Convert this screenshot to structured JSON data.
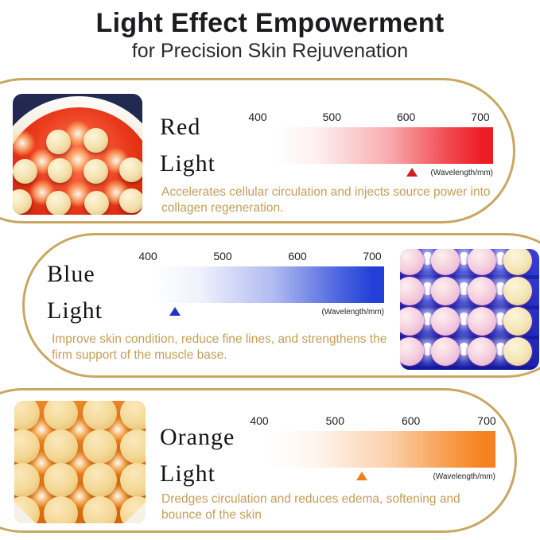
{
  "header": {
    "title": "Light Effect Empowerment",
    "subtitle": "for Precision Skin Rejuvenation"
  },
  "wavelength_unit": "(Wavelength/mm)",
  "colors": {
    "gold_border": "#C9A761",
    "gold_text": "#C59D58",
    "tick_text": "#222222"
  },
  "sections": [
    {
      "id": "red",
      "name": "Red Light",
      "name_line1": "Red",
      "name_line2": "Light",
      "ticks": [
        "400",
        "500",
        "600",
        "700"
      ],
      "bar_color": "#EC1C24",
      "marker_color": "#D61A21",
      "marker_pct": 63,
      "marker_wavelength_nm": 600,
      "description": "Accelerates cellular circulation and injects source power into collagen regeneration.",
      "photo": "red-led-therapy-device"
    },
    {
      "id": "blue",
      "name": "Blue Light",
      "name_line1": "Blue",
      "name_line2": "Light",
      "ticks": [
        "400",
        "500",
        "600",
        "700"
      ],
      "bar_color": "#2240D8",
      "marker_color": "#2134C4",
      "marker_pct": 9,
      "marker_wavelength_nm": 435,
      "description": "Improve skin condition, reduce fine lines, and strengthens the firm support of the muscle base.",
      "photo": "blue-led-therapy-panel"
    },
    {
      "id": "orange",
      "name": "Orange Light",
      "name_line1": "Orange",
      "name_line2": "Light",
      "ticks": [
        "400",
        "500",
        "600",
        "700"
      ],
      "bar_color": "#F5821E",
      "marker_color": "#EE7D1F",
      "marker_pct": 41,
      "marker_wavelength_nm": 535,
      "description": "Dredges circulation and reduces edema, softening and bounce of the skin",
      "photo": "orange-led-therapy-panel"
    }
  ]
}
